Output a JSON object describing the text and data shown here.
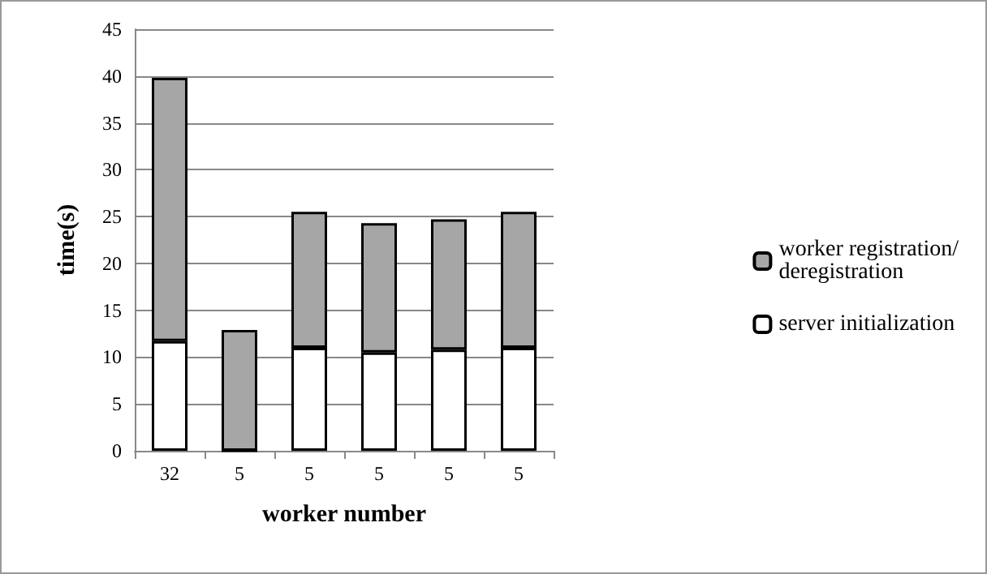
{
  "chart_data": {
    "type": "bar",
    "stacked": true,
    "xlabel": "worker number",
    "ylabel": "time(s)",
    "categories": [
      "32",
      "5",
      "5",
      "5",
      "5",
      "5"
    ],
    "series": [
      {
        "name": "server initialization",
        "color": "#ffffff",
        "values": [
          11.7,
          0,
          11,
          10.5,
          10.8,
          11
        ]
      },
      {
        "name": "worker registration/ deregistration",
        "color": "#a6a6a6",
        "values": [
          28.1,
          12.9,
          14.5,
          13.8,
          13.9,
          14.5
        ]
      }
    ],
    "ylim": [
      0,
      45
    ],
    "yticks": [
      0,
      5,
      10,
      15,
      20,
      25,
      30,
      35,
      40,
      45
    ],
    "grid": "y",
    "legend": "right"
  }
}
